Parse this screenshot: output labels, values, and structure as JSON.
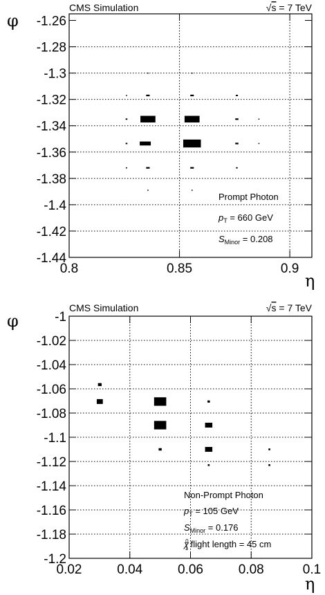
{
  "chart_data": [
    {
      "type": "heatmap",
      "header_left": "CMS Simulation",
      "header_right_prefix": "√",
      "header_right_s": "s",
      "header_right_rest": " = 7 TeV",
      "xlabel": "η",
      "ylabel": "φ",
      "xlim": [
        0.8,
        0.91
      ],
      "ylim": [
        -1.44,
        -1.255
      ],
      "xticks": [
        0.8,
        0.85,
        0.9
      ],
      "xtick_labels": [
        "0.8",
        "0.85",
        "0.9"
      ],
      "yticks": [
        -1.26,
        -1.28,
        -1.3,
        -1.32,
        -1.34,
        -1.36,
        -1.38,
        -1.4,
        -1.42,
        -1.44
      ],
      "ytick_labels": [
        "-1.26",
        "-1.28",
        "-1.3",
        "-1.32",
        "-1.34",
        "-1.36",
        "-1.38",
        "-1.4",
        "-1.42",
        "-1.44"
      ],
      "x_gridlines": [
        0.85,
        0.9
      ],
      "y_gridlines": [
        -1.28,
        -1.3,
        -1.32,
        -1.34,
        -1.36,
        -1.38,
        -1.4,
        -1.42
      ],
      "annotations": {
        "line1": "Prompt Photon",
        "pt_symbol": "p",
        "pt_sub": "T",
        "pt_rest": " = 660 GeV",
        "s_symbol": "S",
        "s_sub": "Minor",
        "s_rest": " = 0.208"
      },
      "cells": [
        {
          "eta": 0.8357,
          "phi": -1.335,
          "w": 0.0068,
          "h": 0.005
        },
        {
          "eta": 0.8557,
          "phi": -1.335,
          "w": 0.0068,
          "h": 0.005
        },
        {
          "eta": 0.8345,
          "phi": -1.3535,
          "w": 0.005,
          "h": 0.003
        },
        {
          "eta": 0.8557,
          "phi": -1.3535,
          "w": 0.008,
          "h": 0.006
        },
        {
          "eta": 0.8357,
          "phi": -1.317,
          "w": 0.0016,
          "h": 0.0012
        },
        {
          "eta": 0.8557,
          "phi": -1.317,
          "w": 0.0016,
          "h": 0.0012
        },
        {
          "eta": 0.876,
          "phi": -1.317,
          "w": 0.001,
          "h": 0.001
        },
        {
          "eta": 0.826,
          "phi": -1.317,
          "w": 0.0005,
          "h": 0.0008
        },
        {
          "eta": 0.826,
          "phi": -1.335,
          "w": 0.0008,
          "h": 0.001
        },
        {
          "eta": 0.876,
          "phi": -1.335,
          "w": 0.0014,
          "h": 0.0012
        },
        {
          "eta": 0.886,
          "phi": -1.335,
          "w": 0.0005,
          "h": 0.0008
        },
        {
          "eta": 0.826,
          "phi": -1.3535,
          "w": 0.0008,
          "h": 0.001
        },
        {
          "eta": 0.876,
          "phi": -1.3535,
          "w": 0.0014,
          "h": 0.0012
        },
        {
          "eta": 0.886,
          "phi": -1.3535,
          "w": 0.0005,
          "h": 0.0008
        },
        {
          "eta": 0.826,
          "phi": -1.372,
          "w": 0.0006,
          "h": 0.0008
        },
        {
          "eta": 0.8357,
          "phi": -1.372,
          "w": 0.0016,
          "h": 0.0012
        },
        {
          "eta": 0.8557,
          "phi": -1.372,
          "w": 0.0016,
          "h": 0.0012
        },
        {
          "eta": 0.876,
          "phi": -1.372,
          "w": 0.0008,
          "h": 0.0009
        },
        {
          "eta": 0.8357,
          "phi": -1.389,
          "w": 0.0005,
          "h": 0.0008
        },
        {
          "eta": 0.8557,
          "phi": -1.389,
          "w": 0.0005,
          "h": 0.0008
        },
        {
          "eta": 0.8357,
          "phi": -1.3,
          "w": 0.0004,
          "h": 0.0007
        },
        {
          "eta": 0.8557,
          "phi": -1.3,
          "w": 0.0004,
          "h": 0.0007
        }
      ]
    },
    {
      "type": "heatmap",
      "header_left": "CMS Simulation",
      "header_right_prefix": "√",
      "header_right_s": "s",
      "header_right_rest": " = 7 TeV",
      "xlabel": "η",
      "ylabel": "φ",
      "xlim": [
        0.02,
        0.1
      ],
      "ylim": [
        -1.2,
        -1.0
      ],
      "xticks": [
        0.02,
        0.04,
        0.06,
        0.08,
        0.1
      ],
      "xtick_labels": [
        "0.02",
        "0.04",
        "0.06",
        "0.08",
        "0.1"
      ],
      "yticks": [
        -1.0,
        -1.02,
        -1.04,
        -1.06,
        -1.08,
        -1.1,
        -1.12,
        -1.14,
        -1.16,
        -1.18,
        -1.2
      ],
      "ytick_labels": [
        "-1",
        "-1.02",
        "-1.04",
        "-1.06",
        "-1.08",
        "-1.1",
        "-1.12",
        "-1.14",
        "-1.16",
        "-1.18",
        "-1.2"
      ],
      "x_gridlines": [
        0.04,
        0.06,
        0.08
      ],
      "y_gridlines": [
        -1.02,
        -1.04,
        -1.06,
        -1.08,
        -1.1,
        -1.12,
        -1.14,
        -1.16,
        -1.18
      ],
      "annotations": {
        "line1": "Non-Prompt Photon",
        "pt_symbol": "p",
        "pt_sub": "T",
        "pt_rest": " = 105 GeV",
        "s_symbol": "S",
        "s_sub": "Minor",
        "s_rest": " = 0.176",
        "chi_symbol": "χ",
        "chi_sup": "0",
        "chi_sub": "1",
        "chi_rest": " flight length = 45 cm"
      },
      "cells": [
        {
          "eta": 0.0301,
          "phi": -1.0565,
          "w": 0.0012,
          "h": 0.0025
        },
        {
          "eta": 0.0301,
          "phi": -1.0705,
          "w": 0.002,
          "h": 0.004
        },
        {
          "eta": 0.05,
          "phi": -1.0705,
          "w": 0.004,
          "h": 0.007
        },
        {
          "eta": 0.05,
          "phi": -1.09,
          "w": 0.004,
          "h": 0.007
        },
        {
          "eta": 0.05,
          "phi": -1.11,
          "w": 0.001,
          "h": 0.002
        },
        {
          "eta": 0.066,
          "phi": -1.0705,
          "w": 0.0008,
          "h": 0.0018
        },
        {
          "eta": 0.066,
          "phi": -1.09,
          "w": 0.0024,
          "h": 0.004
        },
        {
          "eta": 0.066,
          "phi": -1.11,
          "w": 0.0024,
          "h": 0.004
        },
        {
          "eta": 0.066,
          "phi": -1.123,
          "w": 0.0006,
          "h": 0.0015
        },
        {
          "eta": 0.086,
          "phi": -1.11,
          "w": 0.0006,
          "h": 0.0015
        },
        {
          "eta": 0.086,
          "phi": -1.123,
          "w": 0.0006,
          "h": 0.0015
        }
      ]
    }
  ]
}
